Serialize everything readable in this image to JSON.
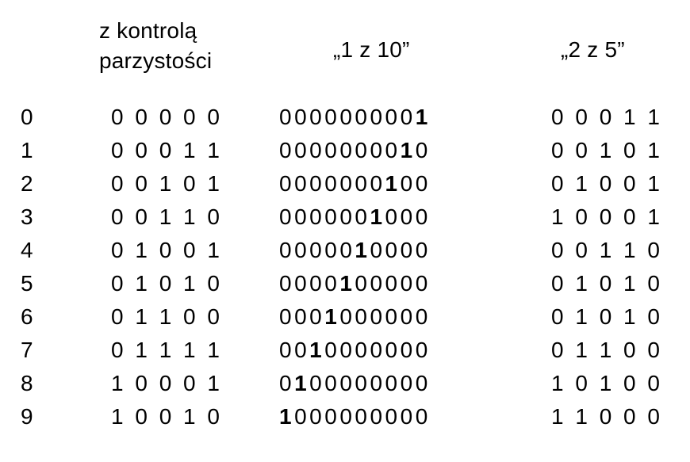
{
  "headers": {
    "parity_line1": "z kontrolą",
    "parity_line2": "parzystości",
    "one_of_ten": "„1 z 10”",
    "two_of_five": "„2 z 5”"
  },
  "rows": [
    {
      "digit": "0",
      "parity": "0 0 0 0 0",
      "one_of_ten": "0000000001",
      "two_of_five": "0 0 0 1 1"
    },
    {
      "digit": "1",
      "parity": "0 0 0 1 1",
      "one_of_ten": "0000000010",
      "two_of_five": "0 0 1 0 1"
    },
    {
      "digit": "2",
      "parity": "0 0 1 0 1",
      "one_of_ten": "0000000100",
      "two_of_five": "0 1 0 0 1"
    },
    {
      "digit": "3",
      "parity": "0 0 1 1 0",
      "one_of_ten": "0000001000",
      "two_of_five": "1 0 0 0 1"
    },
    {
      "digit": "4",
      "parity": "0 1 0 0 1",
      "one_of_ten": "0000010000",
      "two_of_five": "0 0 1 1 0"
    },
    {
      "digit": "5",
      "parity": "0 1 0 1 0",
      "one_of_ten": "0000100000",
      "two_of_five": "0 1 0 1 0"
    },
    {
      "digit": "6",
      "parity": "0 1 1 0 0",
      "one_of_ten": "0001000000",
      "two_of_five": "0 1 0 1 0"
    },
    {
      "digit": "7",
      "parity": "0 1 1 1 1",
      "one_of_ten": "0010000000",
      "two_of_five": "0 1 1 0 0"
    },
    {
      "digit": "8",
      "parity": "1 0 0 0 1",
      "one_of_ten": "0100000000",
      "two_of_five": "1 0 1 0 0"
    },
    {
      "digit": "9",
      "parity": "1 0 0 1 0",
      "one_of_ten": "1000000000",
      "two_of_five": "1 1 0 0 0"
    }
  ]
}
